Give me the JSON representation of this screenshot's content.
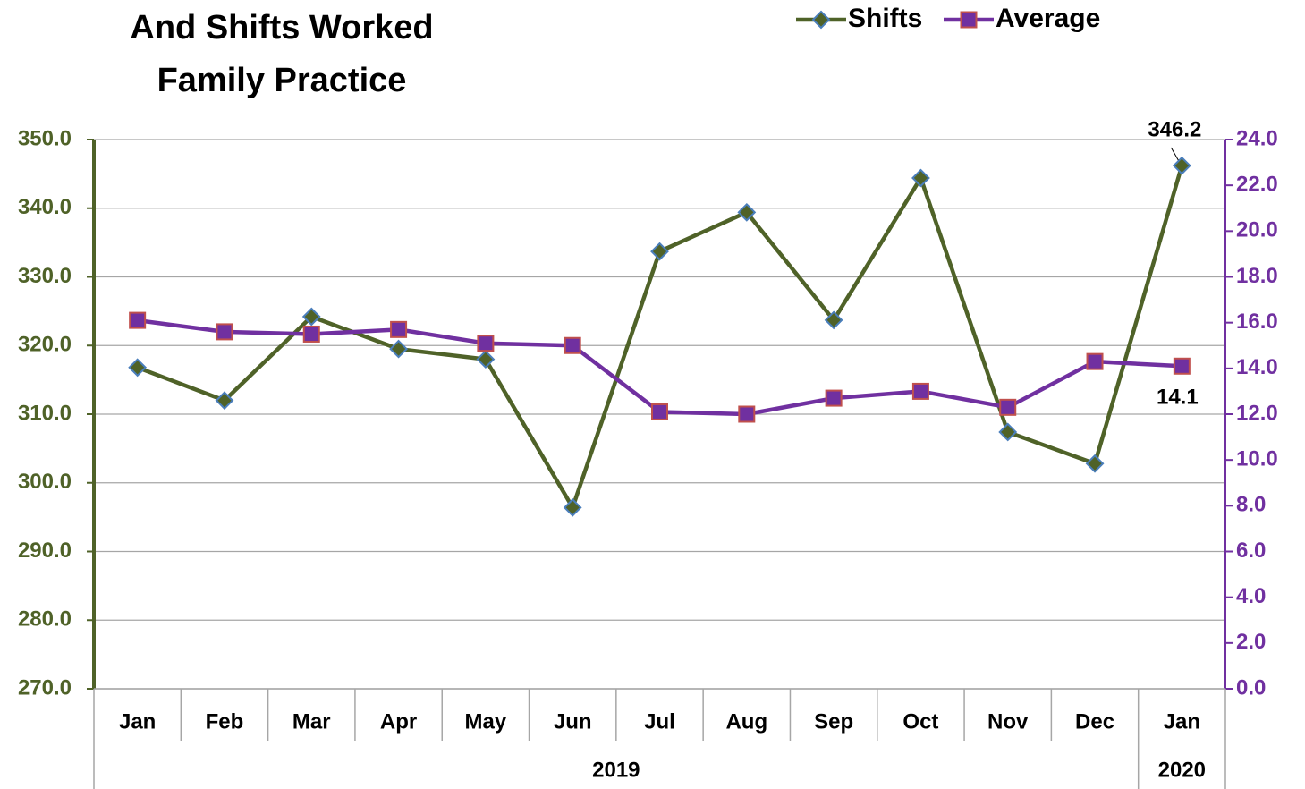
{
  "chart_data": {
    "type": "line",
    "title": [
      "And Shifts Worked",
      "Family Practice"
    ],
    "categories": [
      "Jan",
      "Feb",
      "Mar",
      "Apr",
      "May",
      "Jun",
      "Jul",
      "Aug",
      "Sep",
      "Oct",
      "Nov",
      "Dec",
      "Jan"
    ],
    "category_groups": [
      "2019",
      "2019",
      "2019",
      "2019",
      "2019",
      "2019",
      "2019",
      "2019",
      "2019",
      "2019",
      "2019",
      "2019",
      "2020"
    ],
    "series": [
      {
        "name": "Shifts",
        "color": "#4f6228",
        "marker": "diamond",
        "marker_edge": "#4a7ebb",
        "values": [
          316.8,
          312.0,
          324.2,
          319.5,
          318.0,
          296.4,
          333.7,
          339.4,
          323.7,
          344.4,
          307.4,
          302.8,
          346.2
        ],
        "value_labels": [
          null,
          null,
          null,
          null,
          null,
          null,
          null,
          null,
          null,
          null,
          null,
          null,
          "346.2"
        ]
      },
      {
        "name": "Average",
        "color": "#7030a0",
        "marker": "square",
        "marker_edge": "#c0504d",
        "axis": "y2",
        "values": [
          16.1,
          15.6,
          15.5,
          15.7,
          15.1,
          15.0,
          12.1,
          12.0,
          12.7,
          13.0,
          12.3,
          14.3,
          14.1
        ],
        "value_labels": [
          null,
          null,
          null,
          null,
          null,
          null,
          null,
          null,
          null,
          null,
          null,
          null,
          "14.1"
        ]
      }
    ],
    "ylim": [
      270,
      350
    ],
    "yticks": [
      {
        "value": 270,
        "label": "270.0"
      },
      {
        "value": 280,
        "label": "280.0"
      },
      {
        "value": 290,
        "label": "290.0"
      },
      {
        "value": 300,
        "label": "300.0"
      },
      {
        "value": 310,
        "label": "310.0"
      },
      {
        "value": 320,
        "label": "320.0"
      },
      {
        "value": 330,
        "label": "330.0"
      },
      {
        "value": 340,
        "label": "340.0"
      },
      {
        "value": 350,
        "label": "350.0"
      }
    ],
    "y2lim": [
      0,
      24
    ],
    "y2ticks": [
      {
        "value": 0,
        "label": "0.0"
      },
      {
        "value": 2,
        "label": "2.0"
      },
      {
        "value": 4,
        "label": "4.0"
      },
      {
        "value": 6,
        "label": "6.0"
      },
      {
        "value": 8,
        "label": "8.0"
      },
      {
        "value": 10,
        "label": "10.0"
      },
      {
        "value": 12,
        "label": "12.0"
      },
      {
        "value": 14,
        "label": "14.0"
      },
      {
        "value": 16,
        "label": "16.0"
      },
      {
        "value": 18,
        "label": "18.0"
      },
      {
        "value": 20,
        "label": "20.0"
      },
      {
        "value": 22,
        "label": "22.0"
      },
      {
        "value": 24,
        "label": "24.0"
      }
    ],
    "y_color": "#4f6228",
    "y2_color": "#7030a0",
    "grid": true
  }
}
